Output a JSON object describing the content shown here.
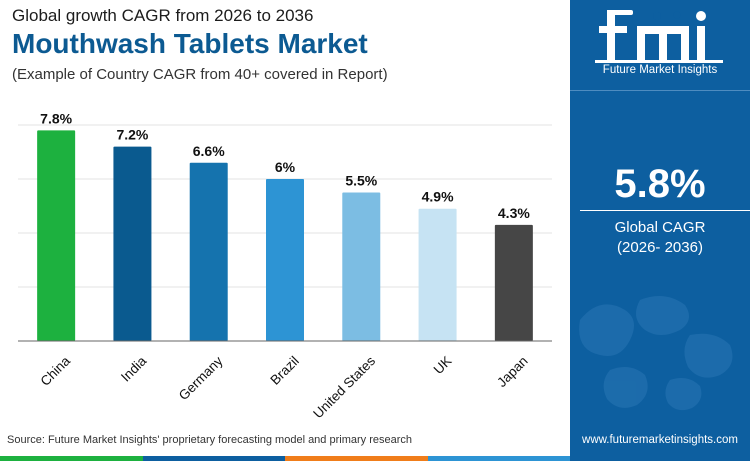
{
  "header": {
    "subtitle": "Global growth CAGR from 2026 to 2036",
    "title": "Mouthwash Tablets Market",
    "note": "(Example of Country CAGR from 40+ covered in Report)"
  },
  "chart_data": {
    "type": "bar",
    "categories": [
      "China",
      "India",
      "Germany",
      "Brazil",
      "United States",
      "UK",
      "Japan"
    ],
    "values": [
      7.8,
      7.2,
      6.6,
      6,
      5.5,
      4.9,
      4.3
    ],
    "value_labels": [
      "7.8%",
      "7.2%",
      "6.6%",
      "6%",
      "5.5%",
      "4.9%",
      "4.3%"
    ],
    "colors": [
      "#1db13f",
      "#0a5a8f",
      "#1573ae",
      "#2d94d4",
      "#7cbde3",
      "#c6e3f3",
      "#464646"
    ],
    "ylim": [
      0,
      8
    ],
    "grid": true
  },
  "footer": {
    "source": "Source: Future Market Insights' proprietary forecasting model and primary research",
    "strip_colors": [
      "#1db13f",
      "#0d5fa0",
      "#f07d1a",
      "#2d94d4"
    ]
  },
  "sidebar": {
    "logo_text": "fmi",
    "logo_caption": "Future Market Insights",
    "cagr_value": "5.8%",
    "cagr_label_line1": "Global CAGR",
    "cagr_label_line2": "(2026- 2036)",
    "website": "www.futuremarketinsights.com",
    "background": "#0d5fa0"
  }
}
